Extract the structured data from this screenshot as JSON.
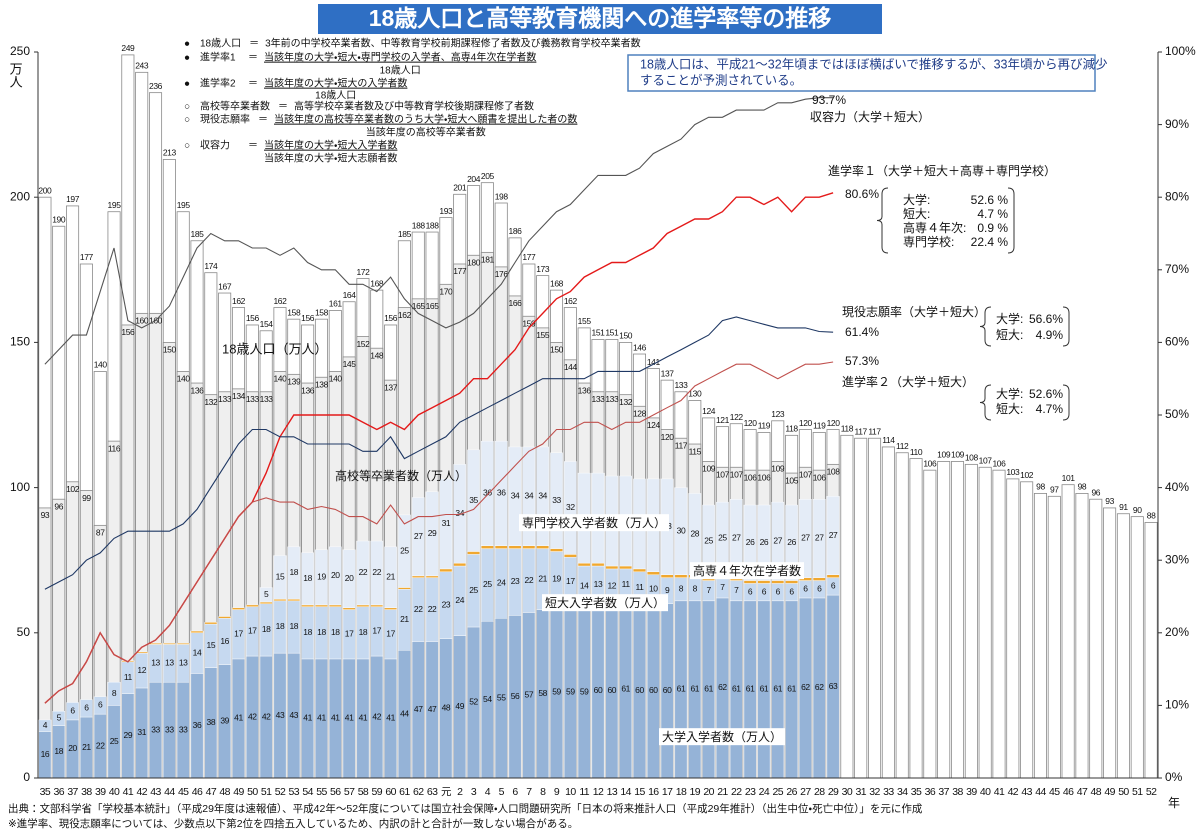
{
  "chart_data": {
    "type": "bar",
    "title": "18歳人口と高等教育機関への進学率等の推移",
    "ylabel": "万人",
    "xlabel": "年",
    "categories": [
      "35",
      "36",
      "37",
      "38",
      "39",
      "40",
      "41",
      "42",
      "43",
      "44",
      "45",
      "46",
      "47",
      "48",
      "49",
      "50",
      "51",
      "52",
      "53",
      "54",
      "55",
      "56",
      "57",
      "58",
      "59",
      "60",
      "61",
      "62",
      "63",
      "元",
      "2",
      "3",
      "4",
      "5",
      "6",
      "7",
      "8",
      "9",
      "10",
      "11",
      "12",
      "13",
      "14",
      "15",
      "16",
      "17",
      "18",
      "19",
      "20",
      "21",
      "22",
      "23",
      "24",
      "25",
      "26",
      "27",
      "28",
      "29",
      "30",
      "31",
      "32",
      "33",
      "34",
      "35",
      "36",
      "37",
      "38",
      "39",
      "40",
      "41",
      "42",
      "43",
      "44",
      "45",
      "46",
      "47",
      "48",
      "49",
      "50",
      "51",
      "52"
    ],
    "ylim": [
      0,
      250
    ],
    "yticks": [
      0,
      50,
      100,
      150,
      200,
      250
    ],
    "y2lim": [
      0,
      100
    ],
    "y2ticks": [
      {
        "value": 0,
        "label": "0%"
      },
      {
        "value": 10,
        "label": "10%"
      },
      {
        "value": 20,
        "label": "20%"
      },
      {
        "value": 30,
        "label": "30%"
      },
      {
        "value": 40,
        "label": "40%"
      },
      {
        "value": 50,
        "label": "50%"
      },
      {
        "value": 60,
        "label": "60%"
      },
      {
        "value": 70,
        "label": "70%"
      },
      {
        "value": 80,
        "label": "80%"
      },
      {
        "value": 90,
        "label": "90%"
      },
      {
        "value": 100,
        "label": "100%"
      }
    ],
    "series": [
      {
        "name": "18歳人口（万人）",
        "type": "bar",
        "color": "#ffffff",
        "values": [
          200,
          190,
          197,
          177,
          140,
          195,
          249,
          243,
          236,
          213,
          195,
          185,
          174,
          167,
          162,
          156,
          154,
          162,
          158,
          156,
          158,
          161,
          164,
          172,
          168,
          156,
          185,
          188,
          188,
          193,
          201,
          204,
          205,
          198,
          186,
          177,
          173,
          168,
          162,
          155,
          151,
          151,
          150,
          146,
          141,
          137,
          133,
          130,
          124,
          121,
          122,
          120,
          119,
          123,
          118,
          120,
          119,
          120,
          118,
          117,
          117,
          114,
          112,
          110,
          106,
          109,
          109,
          108,
          107,
          106,
          103,
          102,
          98,
          97,
          101,
          98,
          96,
          93,
          91,
          90,
          88
        ]
      },
      {
        "name": "高校等卒業者数（万人）",
        "type": "bar",
        "color": "#efefef",
        "values": [
          93,
          96,
          102,
          99,
          87,
          116,
          156,
          160,
          160,
          150,
          140,
          136,
          132,
          133,
          134,
          133,
          133,
          140,
          139,
          136,
          138,
          140,
          145,
          152,
          148,
          137,
          162,
          165,
          165,
          170,
          177,
          180,
          181,
          176,
          166,
          159,
          155,
          150,
          144,
          136,
          133,
          133,
          132,
          128,
          124,
          120,
          117,
          115,
          109,
          107,
          107,
          106,
          106,
          109,
          105,
          107,
          106,
          108,
          null,
          null,
          null,
          null,
          null,
          null,
          null,
          null,
          null,
          null,
          null,
          null,
          null,
          null,
          null,
          null,
          null,
          null,
          null,
          null,
          null,
          null,
          null
        ]
      },
      {
        "name": "大学入学者数（万人）",
        "type": "bar",
        "stacked": true,
        "color": "#95b3d7",
        "values": [
          16,
          18,
          20,
          21,
          22,
          25,
          29,
          31,
          33,
          33,
          33,
          36,
          38,
          39,
          41,
          42,
          42,
          43,
          43,
          41,
          41,
          41,
          41,
          41,
          42,
          41,
          44,
          47,
          47,
          48,
          49,
          52,
          54,
          55,
          56,
          57,
          58,
          59,
          59,
          59,
          60,
          60,
          61,
          60,
          60,
          60,
          61,
          61,
          61,
          62,
          61,
          61,
          61,
          61,
          61,
          62,
          62,
          63,
          null,
          null,
          null,
          null,
          null,
          null,
          null,
          null,
          null,
          null,
          null,
          null,
          null,
          null,
          null,
          null,
          null,
          null,
          null,
          null,
          null,
          null,
          null
        ]
      },
      {
        "name": "短大入学者数（万人）",
        "type": "bar",
        "stacked": true,
        "color": "#c6d9f0",
        "values": [
          4,
          5,
          6,
          6,
          6,
          8,
          11,
          12,
          13,
          13,
          13,
          14,
          15,
          16,
          17,
          17,
          18,
          18,
          18,
          18,
          18,
          18,
          17,
          18,
          17,
          17,
          21,
          22,
          22,
          23,
          24,
          25,
          25,
          24,
          23,
          22,
          21,
          19,
          17,
          14,
          13,
          12,
          11,
          11,
          10,
          9,
          8,
          8,
          7,
          7,
          7,
          6,
          6,
          6,
          6,
          6,
          6,
          6,
          null,
          null,
          null,
          null,
          null,
          null,
          null,
          null,
          null,
          null,
          null,
          null,
          null,
          null,
          null,
          null,
          null,
          null,
          null,
          null,
          null,
          null,
          null
        ]
      },
      {
        "name": "高専４年次在学者数",
        "type": "bar",
        "stacked": true,
        "color": "#f0a830",
        "values": [
          null,
          null,
          null,
          null,
          null,
          null,
          0.4,
          0.4,
          0.4,
          0.4,
          0.4,
          0.6,
          0.6,
          0.6,
          0.6,
          0.6,
          0.6,
          0.6,
          0.6,
          0.6,
          0.6,
          0.6,
          0.6,
          0.6,
          0.6,
          0.6,
          0.6,
          0.6,
          0.6,
          1,
          1,
          1,
          1,
          1,
          1,
          1,
          1,
          1,
          1,
          1,
          1,
          1,
          1,
          1,
          1,
          1,
          1,
          1,
          1,
          1,
          1,
          1,
          1,
          1,
          1,
          1,
          1,
          1,
          null,
          null,
          null,
          null,
          null,
          null,
          null,
          null,
          null,
          null,
          null,
          null,
          null,
          null,
          null,
          null,
          null,
          null,
          null,
          null,
          null,
          null,
          null
        ]
      },
      {
        "name": "専門学校入学者数（万人）",
        "type": "bar",
        "stacked": true,
        "color": "#e4ecf7",
        "values": [
          null,
          null,
          null,
          null,
          null,
          null,
          null,
          null,
          null,
          null,
          null,
          null,
          null,
          null,
          null,
          null,
          5,
          15,
          18,
          18,
          19,
          20,
          20,
          22,
          22,
          21,
          25,
          27,
          29,
          31,
          34,
          35,
          36,
          36,
          34,
          34,
          34,
          33,
          32,
          31,
          31,
          31,
          31,
          31,
          32,
          33,
          30,
          28,
          25,
          25,
          27,
          26,
          26,
          27,
          26,
          27,
          27,
          27,
          null,
          null,
          null,
          null,
          null,
          null,
          null,
          null,
          null,
          null,
          null,
          null,
          null,
          null,
          null,
          null,
          null,
          null,
          null,
          null,
          null,
          null,
          null
        ]
      },
      {
        "name": "収容力（大学＋短大）",
        "type": "line",
        "axis": "y2",
        "color": "#555555",
        "values": [
          57,
          59,
          61,
          61,
          67,
          73,
          63,
          62,
          63,
          65,
          69,
          73,
          75,
          74,
          74,
          73,
          73,
          72,
          73,
          71,
          70,
          70,
          68,
          68,
          67,
          69,
          66,
          64,
          63,
          62,
          62.8,
          64,
          66,
          68,
          71,
          74,
          76,
          78,
          79,
          81,
          83,
          83,
          83,
          84,
          86,
          87,
          88,
          90,
          91,
          91,
          92,
          92,
          92,
          93,
          93,
          93.5,
          93.7,
          93.7,
          null,
          null,
          null,
          null,
          null,
          null,
          null,
          null,
          null,
          null,
          null,
          null,
          null,
          null,
          null,
          null,
          null,
          null,
          null,
          null,
          null,
          null,
          null
        ]
      },
      {
        "name": "進学率１（大学＋短大＋高専＋専門学校）",
        "type": "line",
        "axis": "y2",
        "color": "#e41a1a",
        "values": [
          10.3,
          12,
          13,
          16,
          20,
          17,
          16,
          18,
          19,
          21,
          24,
          27,
          30,
          33,
          36,
          38,
          42,
          47,
          50,
          50,
          50,
          50,
          50,
          49,
          48,
          49,
          48,
          50,
          51,
          52,
          53,
          55,
          55,
          57,
          59,
          62,
          64,
          66,
          67,
          69,
          70,
          71,
          71,
          72,
          73,
          75,
          76,
          77,
          77,
          78,
          80,
          80,
          79,
          80,
          78,
          80,
          80,
          80.6,
          null,
          null,
          null,
          null,
          null,
          null,
          null,
          null,
          null,
          null,
          null,
          null,
          null,
          null,
          null,
          null,
          null,
          null,
          null,
          null,
          null,
          null,
          null
        ]
      },
      {
        "name": "進学率２（大学＋短大）",
        "type": "line",
        "axis": "y2",
        "color": "#c0504d",
        "values": [
          10.3,
          12,
          13,
          16,
          20,
          17,
          16,
          18,
          19,
          21,
          24,
          27,
          30,
          33,
          36,
          38,
          38.6,
          38,
          38,
          37,
          37.4,
          37,
          36,
          36,
          35,
          37.6,
          35,
          36,
          36,
          36.3,
          36.3,
          37,
          39,
          41,
          43,
          45,
          46,
          48,
          48,
          49,
          49,
          48,
          49,
          49,
          50,
          51,
          52,
          54,
          55,
          56,
          57,
          57,
          56,
          55,
          56,
          57,
          57,
          57.3,
          null,
          null,
          null,
          null,
          null,
          null,
          null,
          null,
          null,
          null,
          null,
          null,
          null,
          null,
          null,
          null,
          null,
          null,
          null,
          null,
          null,
          null,
          null
        ]
      },
      {
        "name": "現役志願率（大学＋短大）",
        "type": "line",
        "axis": "y2",
        "color": "#1f3864",
        "values": [
          26,
          27,
          28,
          30,
          31,
          33,
          34,
          34,
          34,
          34,
          35,
          37,
          40,
          43,
          46,
          48,
          48,
          47,
          47,
          46,
          46,
          46,
          46,
          45,
          45,
          47,
          44,
          45,
          46,
          47,
          49,
          50,
          51,
          52,
          53,
          54,
          55,
          55,
          55,
          55,
          56,
          56,
          56,
          56,
          57,
          58,
          59,
          60,
          61,
          63,
          63.5,
          63,
          62.5,
          62,
          62,
          62,
          61.5,
          61.4,
          null,
          null,
          null,
          null,
          null,
          null,
          null,
          null,
          null,
          null,
          null,
          null,
          null,
          null,
          null,
          null,
          null,
          null,
          null,
          null,
          null,
          null,
          null
        ]
      }
    ],
    "annotations": [
      "93.7%",
      "80.6%",
      "61.4%",
      "57.3%"
    ],
    "breakdowns": [
      [
        {
          "label": "大学:",
          "value": "52.6 %"
        },
        {
          "label": "短大:",
          "value": "4.7 %"
        },
        {
          "label": "高専４年次:",
          "value": "0.9 %"
        },
        {
          "label": "専門学校:",
          "value": "22.4 %"
        }
      ],
      [
        {
          "label": "大学:",
          "value": "56.6%"
        },
        {
          "label": "短大:",
          "value": "4.9%"
        }
      ],
      [
        {
          "label": "大学:",
          "value": "52.6%"
        },
        {
          "label": "短大:",
          "value": "4.7%"
        }
      ]
    ]
  },
  "definitions": [
    {
      "bullet": "●",
      "term": "18歳人口",
      "eq": "＝",
      "text": "3年前の中学校卒業者数、中等教育学校前期課程修了者数及び義務教育学校卒業者数"
    },
    {
      "bullet": "●",
      "term": "進学率1",
      "eq": "＝",
      "numerator": "当該年度の大学・短大・専門学校の入学者、高専4年次在学者数",
      "denominator": "18歳人口"
    },
    {
      "bullet": "●",
      "term": "進学率2",
      "eq": "＝",
      "numerator": "当該年度の大学・短大の入学者数",
      "denominator": "18歳人口"
    },
    {
      "bullet": "○",
      "term": "高校等卒業者数",
      "eq": "＝",
      "text": "高等学校卒業者数及び中等教育学校後期課程修了者数"
    },
    {
      "bullet": "○",
      "term": "現役志願率",
      "eq": "＝",
      "numerator": "当該年度の高校等卒業者数のうち大学・短大へ願書を提出した者の数",
      "denominator": "当該年度の高校等卒業者数"
    },
    {
      "bullet": "○",
      "term": "収容力",
      "eq": "＝",
      "numerator": "当該年度の大学・短大入学者数",
      "denominator": "当該年度の大学・短大志願者数"
    }
  ],
  "note": [
    "18歳人口は、平成21～32年頃まではほぼ横ばいで推移するが、33年頃から再び減少",
    "することが予測されている。"
  ],
  "footer": [
    "出典：文部科学省「学校基本統計」（平成29年度は速報値）、平成42年～52年度については国立社会保障・人口問題研究所「日本の将来推計人口（平成29年推計）（出生中位・死亡中位）」を元に作成",
    "※進学率、現役志願率については、少数点以下第2位を四捨五入しているため、内訳の計と合計が一致しない場合がある。"
  ]
}
